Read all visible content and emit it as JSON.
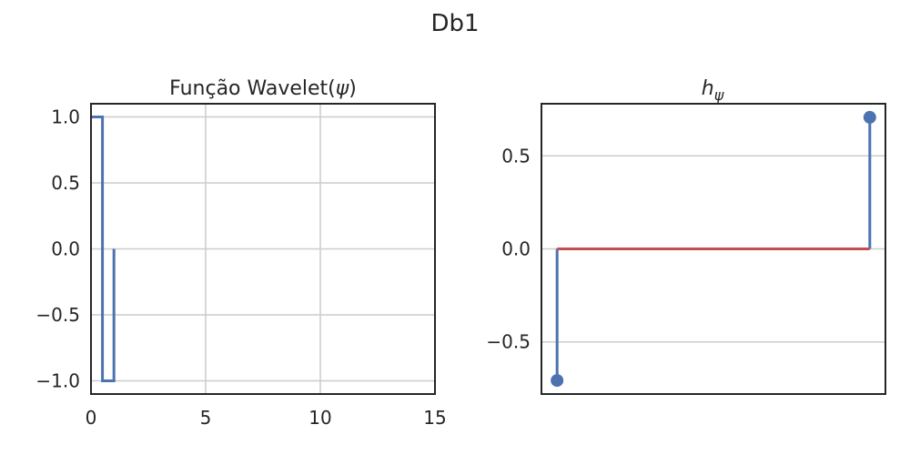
{
  "figure": {
    "suptitle": "Db1"
  },
  "colors": {
    "wavelet_line": "#4c72b0",
    "stem_line": "#4c72b0",
    "baseline": "#c44e52",
    "grid": "#cccccc",
    "frame": "#262626",
    "text": "#262626"
  },
  "chart_data": [
    {
      "type": "line",
      "title_text": "Função Wavelet(",
      "title_symbol": "ψ",
      "title_close": ")",
      "drawstyle": "steps",
      "x": [
        0,
        0.5,
        0.5,
        1.0,
        1.0
      ],
      "y": [
        1.0,
        1.0,
        -1.0,
        -1.0,
        0.0
      ],
      "xlim": [
        0,
        15
      ],
      "ylim": [
        -1.1,
        1.1
      ],
      "xticks": [
        0,
        5,
        10,
        15
      ],
      "xtick_labels": [
        "0",
        "5",
        "10",
        "15"
      ],
      "yticks": [
        1.0,
        0.5,
        0.0,
        -0.5,
        -1.0
      ],
      "ytick_labels": [
        "1.0",
        "0.5",
        "0.0",
        "−0.5",
        "−1.0"
      ],
      "grid": true
    },
    {
      "type": "stem",
      "title_main": "h",
      "title_sub": "ψ",
      "x": [
        0,
        1
      ],
      "y": [
        -0.7071,
        0.7071
      ],
      "baseline": 0,
      "xlim": [
        -0.05,
        1.05
      ],
      "ylim": [
        -0.78,
        0.78
      ],
      "yticks": [
        0.5,
        0.0,
        -0.5
      ],
      "ytick_labels": [
        "0.5",
        "0.0",
        "−0.5"
      ],
      "grid": true
    }
  ]
}
